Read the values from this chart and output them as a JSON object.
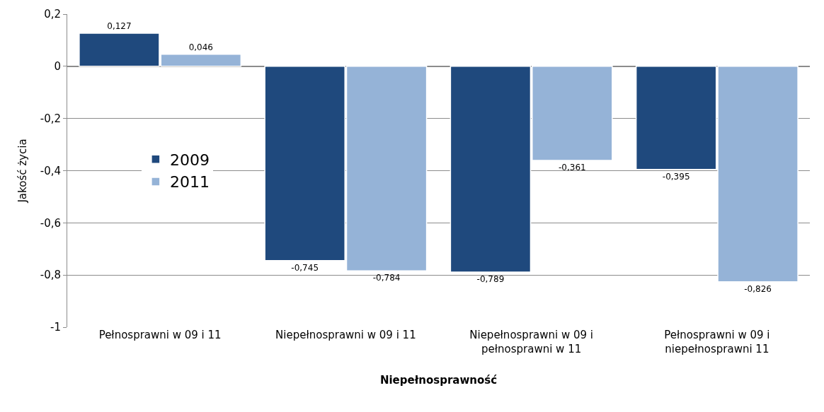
{
  "chart_data": {
    "type": "bar",
    "xlabel": "Niepełnosprawność",
    "ylabel": "Jakość życia",
    "categories": [
      "Pełnosprawni w 09 i 11",
      "Niepełnosprawni w 09 i 11",
      "Niepełnosprawni w 09 i pełnosprawni w 11",
      "Pełnosprawni w 09 i niepełnosprawni 11"
    ],
    "series": [
      {
        "name": "2009",
        "color": "#1f497d",
        "values": [
          0.127,
          -0.745,
          -0.789,
          -0.395
        ],
        "value_labels": [
          "0,127",
          "-0,745",
          "-0,789",
          "-0,395"
        ]
      },
      {
        "name": "2011",
        "color": "#95b3d7",
        "values": [
          0.046,
          -0.784,
          -0.361,
          -0.826
        ],
        "value_labels": [
          "0,046",
          "-0,784",
          "-0,361",
          "-0,826"
        ]
      }
    ],
    "ylim": [
      -1,
      0.2
    ],
    "yticks": [
      {
        "value": -1,
        "label": "-1"
      },
      {
        "value": -0.8,
        "label": "-0,8"
      },
      {
        "value": -0.6,
        "label": "-0,6"
      },
      {
        "value": -0.4,
        "label": "-0,4"
      },
      {
        "value": -0.2,
        "label": "-0,2"
      },
      {
        "value": 0,
        "label": "0"
      },
      {
        "value": 0.2,
        "label": "0,2"
      }
    ],
    "grid": "y",
    "legend": "left"
  }
}
